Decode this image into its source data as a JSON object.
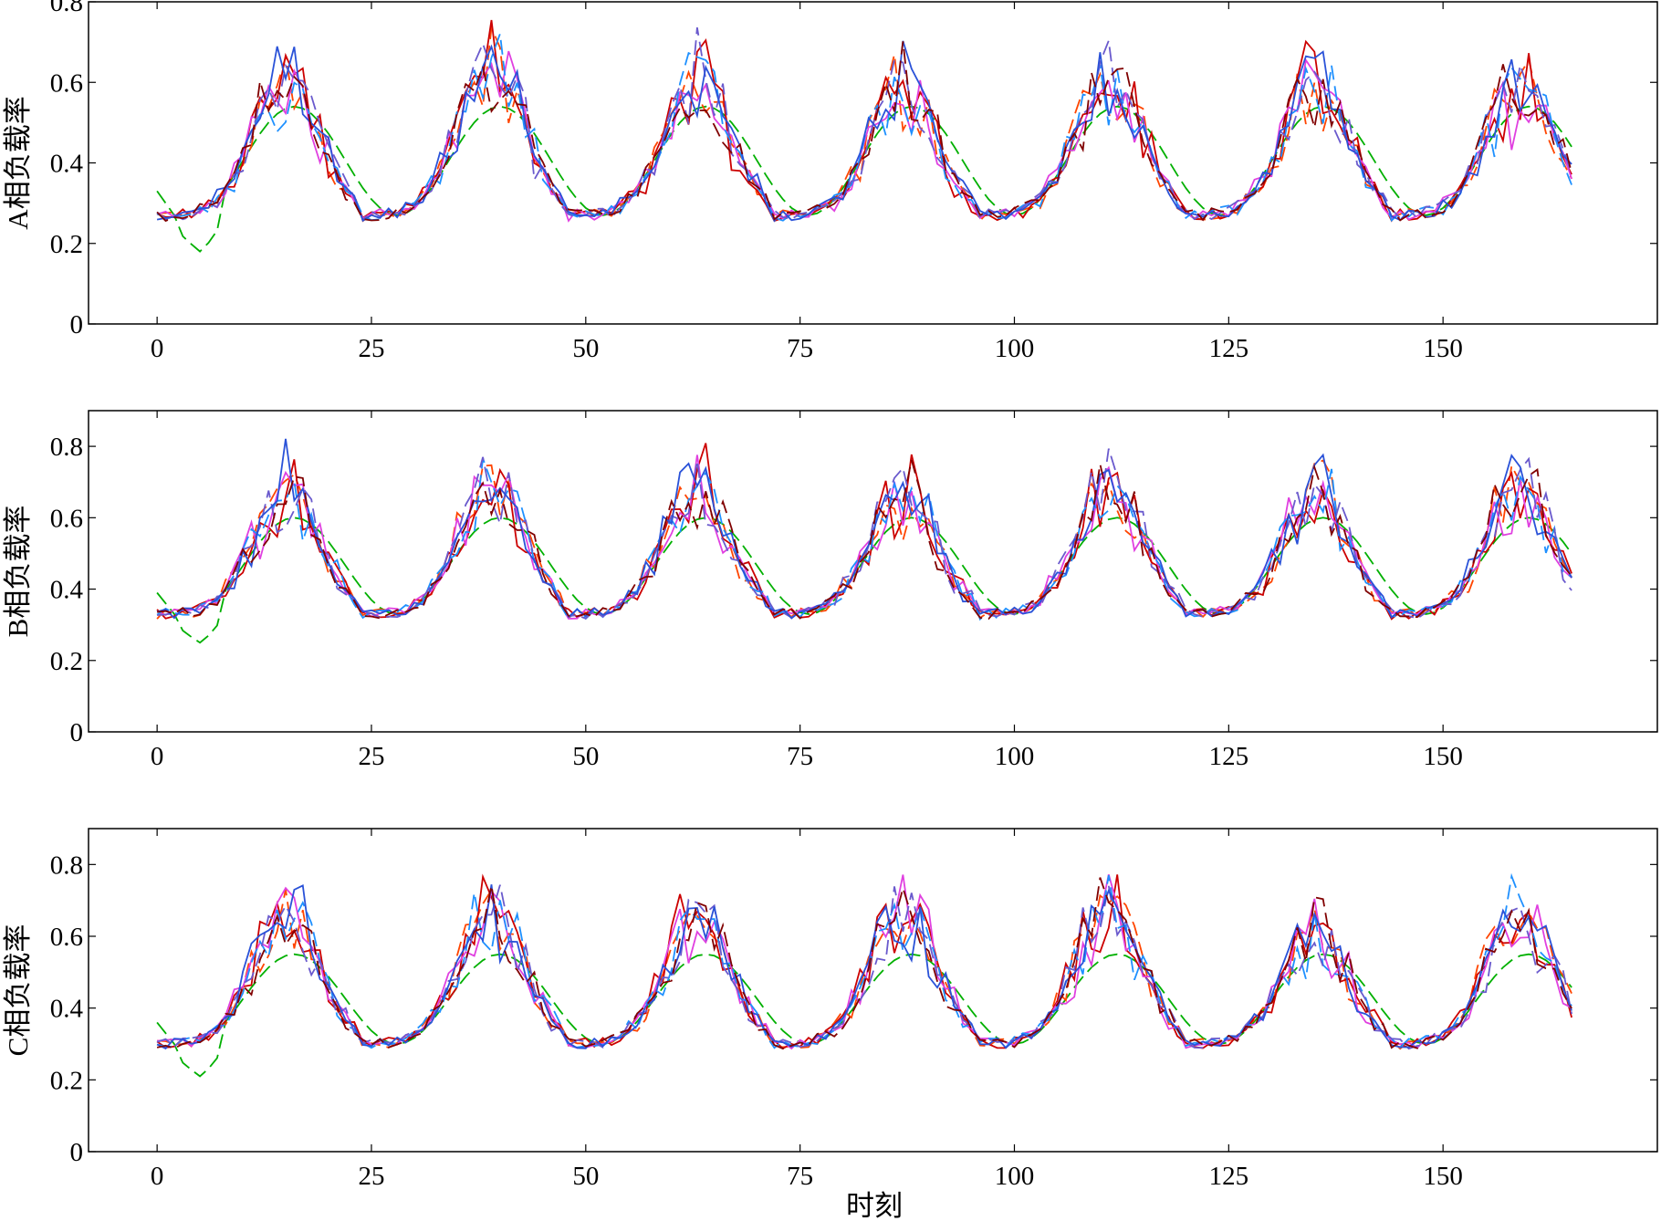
{
  "chart_data": {
    "type": "line",
    "xlabel": "时刻",
    "xlim": [
      -8,
      175
    ],
    "x_ticks": [
      0,
      25,
      50,
      75,
      100,
      125,
      150
    ],
    "num_points": 166,
    "daily_period": 24,
    "series_style": [
      {
        "color": "#00b000",
        "dash": "dashed"
      },
      {
        "color": "#ff4500",
        "dash": "dashed"
      },
      {
        "color": "#cc0000",
        "dash": "solid"
      },
      {
        "color": "#e040e0",
        "dash": "solid"
      },
      {
        "color": "#1e90ff",
        "dash": "dashed"
      },
      {
        "color": "#6a5acd",
        "dash": "dashed"
      },
      {
        "color": "#2a52d8",
        "dash": "solid"
      },
      {
        "color": "#800000",
        "dash": "dashed"
      }
    ],
    "panels": [
      {
        "ylabel": "A相负载率",
        "ylim": [
          0,
          0.8
        ],
        "y_ticks": [
          "0",
          "0.2",
          "0.4",
          "0.6",
          "0.8"
        ],
        "baseline": 0.27,
        "day_peaks": [
          0.62,
          0.65,
          0.62,
          0.6,
          0.62,
          0.6,
          0.6
        ],
        "smooth_peak": 0.54,
        "smooth_min": 0.18
      },
      {
        "ylabel": "B相负载率",
        "ylim": [
          0,
          0.9
        ],
        "y_ticks": [
          "0",
          "0.2",
          "0.4",
          "0.6",
          "0.8"
        ],
        "baseline": 0.33,
        "day_peaks": [
          0.7,
          0.72,
          0.7,
          0.68,
          0.72,
          0.68,
          0.7
        ],
        "smooth_peak": 0.6,
        "smooth_min": 0.25
      },
      {
        "ylabel": "C相负载率",
        "ylim": [
          0,
          0.9
        ],
        "y_ticks": [
          "0",
          "0.2",
          "0.4",
          "0.6",
          "0.8"
        ],
        "baseline": 0.3,
        "day_peaks": [
          0.68,
          0.68,
          0.66,
          0.68,
          0.7,
          0.62,
          0.68
        ],
        "smooth_peak": 0.55,
        "smooth_min": 0.21
      }
    ]
  }
}
